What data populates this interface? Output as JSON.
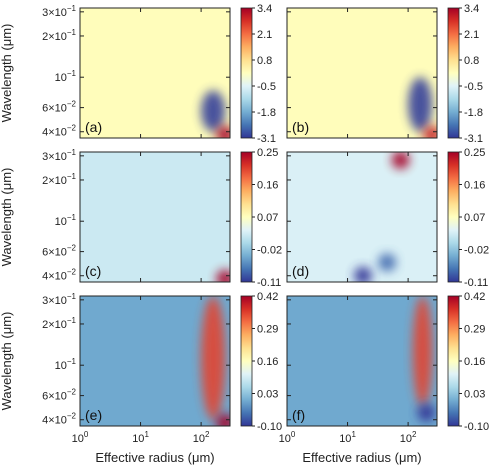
{
  "chart_data": [
    {
      "type": "heatmap",
      "panel_label": "(a)",
      "xlabel": "",
      "ylabel": "Wavelength (μm)",
      "xscale": "log",
      "yscale": "log",
      "xlim": [
        1,
        300
      ],
      "ylim": [
        0.036,
        0.32
      ],
      "colorbar": {
        "min": -3.1,
        "max": 3.4,
        "ticks": [
          "3.4",
          "2.1",
          "0.8",
          "-0.5",
          "-1.8",
          "-3.1"
        ]
      },
      "base_value": 0.2,
      "features": [
        {
          "region": "lower-right",
          "x_range_um": [
            100,
            250
          ],
          "y_range_um": [
            0.04,
            0.08
          ],
          "value": -3.0
        },
        {
          "region": "bottom-right corner",
          "x_um": 250,
          "y_um": 0.038,
          "value": 3.4
        }
      ]
    },
    {
      "type": "heatmap",
      "panel_label": "(b)",
      "xlabel": "",
      "ylabel": "",
      "xscale": "log",
      "yscale": "log",
      "xlim": [
        1,
        300
      ],
      "ylim": [
        0.036,
        0.32
      ],
      "colorbar": {
        "min": -3.1,
        "max": 3.4,
        "ticks": [
          "3.4",
          "2.1",
          "0.8",
          "-0.5",
          "-1.8",
          "-3.1"
        ]
      },
      "base_value": 0.2,
      "features": [
        {
          "region": "lower-right",
          "x_range_um": [
            100,
            250
          ],
          "y_range_um": [
            0.04,
            0.1
          ],
          "value": -3.0
        },
        {
          "region": "bottom-right corner",
          "x_um": 250,
          "y_um": 0.038,
          "value": 3.0
        }
      ]
    },
    {
      "type": "heatmap",
      "panel_label": "(c)",
      "xlabel": "",
      "ylabel": "Wavelength (μm)",
      "xscale": "log",
      "yscale": "log",
      "xlim": [
        1,
        300
      ],
      "ylim": [
        0.036,
        0.32
      ],
      "colorbar": {
        "min": -0.11,
        "max": 0.25,
        "ticks": [
          "0.25",
          "0.16",
          "0.07",
          "-0.02",
          "-0.11"
        ]
      },
      "base_value": 0.02,
      "features": [
        {
          "region": "bottom-right corner",
          "x_um": 250,
          "y_um": 0.038,
          "value": 0.25
        }
      ]
    },
    {
      "type": "heatmap",
      "panel_label": "(d)",
      "xlabel": "",
      "ylabel": "",
      "xscale": "log",
      "yscale": "log",
      "xlim": [
        1,
        300
      ],
      "ylim": [
        0.036,
        0.32
      ],
      "colorbar": {
        "min": -0.11,
        "max": 0.25,
        "ticks": [
          "0.25",
          "0.16",
          "0.07",
          "-0.02",
          "-0.11"
        ]
      },
      "base_value": 0.03,
      "features": [
        {
          "region": "top",
          "x_um": 75,
          "y_um": 0.28,
          "value": 0.25
        },
        {
          "region": "bottom",
          "x_um": 18,
          "y_um": 0.04,
          "value": -0.11
        },
        {
          "region": "bottom",
          "x_um": 45,
          "y_um": 0.05,
          "value": -0.08
        }
      ]
    },
    {
      "type": "heatmap",
      "panel_label": "(e)",
      "xlabel": "Effective radius (μm)",
      "ylabel": "Wavelength (μm)",
      "xscale": "log",
      "yscale": "log",
      "xlim": [
        1,
        300
      ],
      "ylim": [
        0.036,
        0.32
      ],
      "colorbar": {
        "min": -0.1,
        "max": 0.42,
        "ticks": [
          "0.42",
          "0.29",
          "0.16",
          "0.03",
          "-0.10"
        ]
      },
      "base_value": 0.0,
      "features": [
        {
          "region": "right diagonal band",
          "x_range_um": [
            100,
            250
          ],
          "y_range_um": [
            0.04,
            0.32
          ],
          "value": 0.35
        },
        {
          "region": "bottom-right corner",
          "x_um": 250,
          "y_um": 0.038,
          "value": 0.42
        }
      ]
    },
    {
      "type": "heatmap",
      "panel_label": "(f)",
      "xlabel": "Effective radius (μm)",
      "ylabel": "",
      "xscale": "log",
      "yscale": "log",
      "xlim": [
        1,
        300
      ],
      "ylim": [
        0.036,
        0.32
      ],
      "colorbar": {
        "min": -0.1,
        "max": 0.42,
        "ticks": [
          "0.42",
          "0.29",
          "0.16",
          "0.03",
          "-0.10"
        ]
      },
      "base_value": 0.0,
      "features": [
        {
          "region": "right diagonal band",
          "x_range_um": [
            120,
            250
          ],
          "y_range_um": [
            0.05,
            0.32
          ],
          "value": 0.35
        },
        {
          "region": "lower-right",
          "x_um": 200,
          "y_um": 0.045,
          "value": -0.1
        }
      ]
    }
  ],
  "axes": {
    "x_ticks": [
      {
        "value": 1,
        "base": "10",
        "exp": "0"
      },
      {
        "value": 10,
        "base": "10",
        "exp": "1"
      },
      {
        "value": 100,
        "base": "10",
        "exp": "2"
      }
    ],
    "y_ticks": [
      {
        "value": 0.3,
        "mant": "3",
        "exp": "−1"
      },
      {
        "value": 0.2,
        "mant": "2",
        "exp": "−1"
      },
      {
        "value": 0.1,
        "mant": "10",
        "exp": "−1"
      },
      {
        "value": 0.06,
        "mant": "6",
        "exp": "−2"
      },
      {
        "value": 0.04,
        "mant": "4",
        "exp": "−2"
      }
    ]
  },
  "colormap": [
    "#313695",
    "#4575b4",
    "#74add1",
    "#abd9e9",
    "#e0f3f8",
    "#ffffbf",
    "#fee090",
    "#fdae61",
    "#f46d43",
    "#d73027",
    "#a50026"
  ]
}
